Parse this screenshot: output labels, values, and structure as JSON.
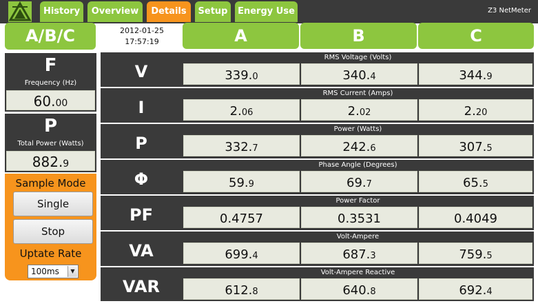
{
  "nav": {
    "tabs": [
      {
        "label": "History",
        "active": false
      },
      {
        "label": "Overview",
        "active": false
      },
      {
        "label": "Details",
        "active": true
      },
      {
        "label": "Setup",
        "active": false
      },
      {
        "label": "Energy Use",
        "active": false
      }
    ],
    "brand": "Z3 NetMeter"
  },
  "header": {
    "phase_group": "A/B/C",
    "date": "2012-01-25",
    "time": "17:57:19",
    "phases": [
      "A",
      "B",
      "C"
    ]
  },
  "frequency": {
    "symbol": "F",
    "label": "Frequency (Hz)",
    "int": "60.",
    "dec": "00"
  },
  "total_power": {
    "symbol": "P",
    "label": "Total Power (Watts)",
    "int": "882.",
    "dec": "9"
  },
  "sample": {
    "title": "Sample Mode",
    "single_label": "Single",
    "stop_label": "Stop",
    "rate_label": "Uptate Rate",
    "rate_value": "100ms"
  },
  "rows": [
    {
      "symbol": "V",
      "title": "RMS Voltage (Volts)",
      "cells": [
        [
          "339.",
          "0"
        ],
        [
          "340.",
          "4"
        ],
        [
          "344.",
          "9"
        ]
      ]
    },
    {
      "symbol": "I",
      "title": "RMS Current (Amps)",
      "cells": [
        [
          "2.",
          "06"
        ],
        [
          "2.",
          "02"
        ],
        [
          "2.",
          "20"
        ]
      ]
    },
    {
      "symbol": "P",
      "title": "Power (Watts)",
      "cells": [
        [
          "332.",
          "7"
        ],
        [
          "242.",
          "6"
        ],
        [
          "307.",
          "5"
        ]
      ]
    },
    {
      "symbol": "Φ",
      "title": "Phase Angle (Degrees)",
      "cells": [
        [
          "59.",
          "9"
        ],
        [
          "69.",
          "7"
        ],
        [
          "65.",
          "5"
        ]
      ]
    },
    {
      "symbol": "PF",
      "title": "Power Factor",
      "cells": [
        [
          "0.4757",
          ""
        ],
        [
          "0.3531",
          ""
        ],
        [
          "0.4049",
          ""
        ]
      ]
    },
    {
      "symbol": "VA",
      "title": "Volt-Ampere",
      "cells": [
        [
          "699.",
          "4"
        ],
        [
          "687.",
          "3"
        ],
        [
          "759.",
          "5"
        ]
      ]
    },
    {
      "symbol": "VAR",
      "title": "Volt-Ampere Reactive",
      "cells": [
        [
          "612.",
          "8"
        ],
        [
          "640.",
          "8"
        ],
        [
          "692.",
          "4"
        ]
      ]
    }
  ],
  "colors": {
    "green": "#8dc63f",
    "orange": "#f7941d",
    "dark": "#3a3a3a",
    "cell": "#e8eadf"
  }
}
